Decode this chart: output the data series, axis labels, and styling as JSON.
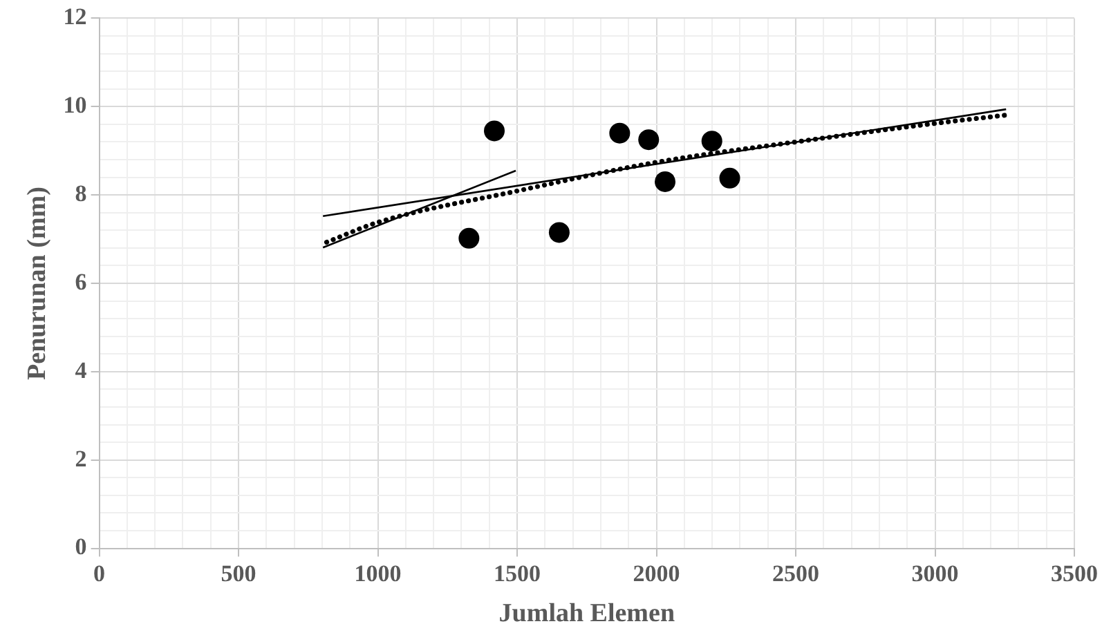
{
  "chart_data": {
    "type": "scatter",
    "xlabel": "Jumlah Elemen",
    "ylabel": "Penurunan (mm)",
    "xlim": [
      0,
      3500
    ],
    "xticks": [
      0,
      {
        "value": 100,
        "label": null
      },
      {
        "value": 200,
        "label": null
      },
      {
        "value": 300,
        "label": null
      },
      {
        "value": 400,
        "label": null
      },
      500,
      {
        "value": 600,
        "label": null
      },
      {
        "value": 700,
        "label": null
      },
      {
        "value": 800,
        "label": null
      },
      {
        "value": 900,
        "label": null
      },
      1000,
      {
        "value": 1100,
        "label": null
      },
      {
        "value": 1200,
        "label": null
      },
      {
        "value": 1300,
        "label": null
      },
      {
        "value": 1400,
        "label": null
      },
      1500,
      {
        "value": 1600,
        "label": null
      },
      {
        "value": 1700,
        "label": null
      },
      {
        "value": 1800,
        "label": null
      },
      {
        "value": 1900,
        "label": null
      },
      2000,
      {
        "value": 2100,
        "label": null
      },
      {
        "value": 2200,
        "label": null
      },
      {
        "value": 2300,
        "label": null
      },
      {
        "value": 2400,
        "label": null
      },
      2500,
      {
        "value": 2600,
        "label": null
      },
      {
        "value": 2700,
        "label": null
      },
      {
        "value": 2800,
        "label": null
      },
      {
        "value": 2900,
        "label": null
      },
      3000,
      {
        "value": 3100,
        "label": null
      },
      {
        "value": 3200,
        "label": null
      },
      {
        "value": 3300,
        "label": null
      },
      {
        "value": 3400,
        "label": null
      },
      3500
    ],
    "ylim": [
      0,
      12
    ],
    "yticks": [
      0,
      {
        "value": 0.4,
        "label": null
      },
      {
        "value": 0.8,
        "label": null
      },
      {
        "value": 1.2,
        "label": null
      },
      {
        "value": 1.6,
        "label": null
      },
      2,
      {
        "value": 2.4,
        "label": null
      },
      {
        "value": 2.8,
        "label": null
      },
      {
        "value": 3.2,
        "label": null
      },
      {
        "value": 3.6,
        "label": null
      },
      4,
      {
        "value": 4.4,
        "label": null
      },
      {
        "value": 4.8,
        "label": null
      },
      {
        "value": 5.2,
        "label": null
      },
      {
        "value": 5.6,
        "label": null
      },
      6,
      {
        "value": 6.4,
        "label": null
      },
      {
        "value": 6.8,
        "label": null
      },
      {
        "value": 7.2,
        "label": null
      },
      {
        "value": 7.6,
        "label": null
      },
      8,
      {
        "value": 8.4,
        "label": null
      },
      {
        "value": 8.8,
        "label": null
      },
      {
        "value": 9.2,
        "label": null
      },
      {
        "value": 9.6,
        "label": null
      },
      10,
      {
        "value": 10.4,
        "label": null
      },
      {
        "value": 10.8,
        "label": null
      },
      {
        "value": 11.2,
        "label": null
      },
      {
        "value": 11.6,
        "label": null
      },
      12
    ],
    "grid": true,
    "legend": false,
    "series": [
      {
        "type": "scatter",
        "color": "#000000",
        "marker": "circle",
        "x": [
          1327,
          1418,
          1651,
          1868,
          1972,
          2031,
          2199,
          2263
        ],
        "values": [
          7.02,
          9.45,
          7.15,
          9.4,
          9.25,
          8.3,
          9.22,
          8.38
        ]
      },
      {
        "type": "line",
        "color": "#000000",
        "marker": "none",
        "line_style": "solid",
        "x": [
          803,
          3255
        ],
        "values": [
          7.52,
          9.94
        ]
      },
      {
        "type": "line",
        "color": "#000000",
        "marker": "none",
        "line_style": "solid",
        "x": [
          803,
          1495
        ],
        "values": [
          6.81,
          8.55
        ]
      },
      {
        "type": "line",
        "color": "#000000",
        "marker": "none",
        "line_style": "dotted",
        "x": [
          816,
          1000,
          1500,
          2000,
          2500,
          3000,
          3259
        ],
        "values": [
          6.93,
          7.38,
          8.09,
          8.74,
          9.2,
          9.62,
          9.81
        ]
      }
    ]
  }
}
